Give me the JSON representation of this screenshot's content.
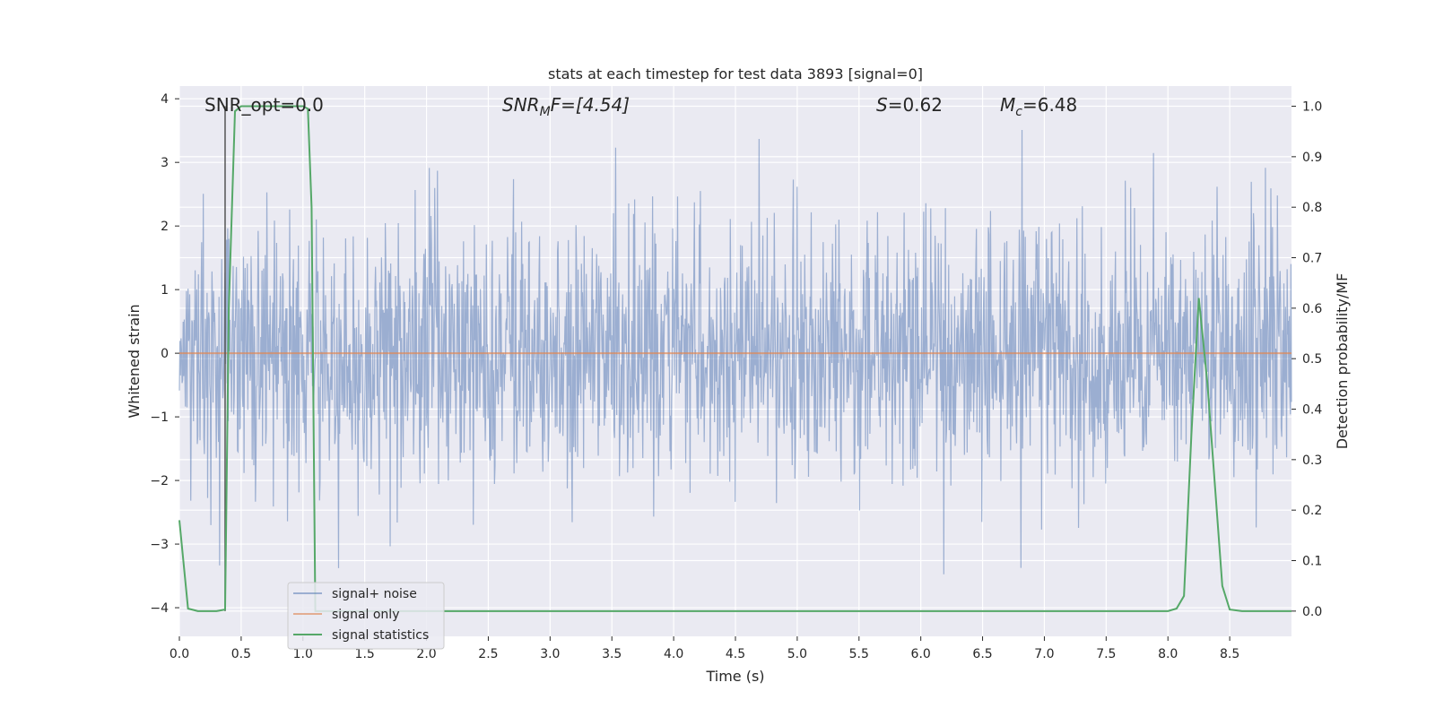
{
  "chart_data": {
    "type": "line",
    "title": "stats at each timestep for test data 3893 [signal=0]",
    "xlabel": "Time (s)",
    "ylabel": "Whitened strain",
    "ylabel_right": "Detection probability/MF",
    "xlim": [
      0.0,
      9.0
    ],
    "ylim": [
      -4.45,
      4.2
    ],
    "ylim_right": [
      -0.05,
      1.04
    ],
    "xticks": [
      "0.0",
      "0.5",
      "1.0",
      "1.5",
      "2.0",
      "2.5",
      "3.0",
      "3.5",
      "4.0",
      "4.5",
      "5.0",
      "5.5",
      "6.0",
      "6.5",
      "7.0",
      "7.5",
      "8.0",
      "8.5"
    ],
    "xtick_values": [
      0.0,
      0.5,
      1.0,
      1.5,
      2.0,
      2.5,
      3.0,
      3.5,
      4.0,
      4.5,
      5.0,
      5.5,
      6.0,
      6.5,
      7.0,
      7.5,
      8.0,
      8.5
    ],
    "yticks_left": [
      "−4",
      "−3",
      "−2",
      "−1",
      "0",
      "1",
      "2",
      "3",
      "4"
    ],
    "ytick_values_left": [
      -4,
      -3,
      -2,
      -1,
      0,
      1,
      2,
      3,
      4
    ],
    "yticks_right": [
      "0.0",
      "0.1",
      "0.2",
      "0.3",
      "0.4",
      "0.5",
      "0.6",
      "0.7",
      "0.8",
      "0.9",
      "1.0"
    ],
    "ytick_values_right": [
      0.0,
      0.1,
      0.2,
      0.3,
      0.4,
      0.5,
      0.6,
      0.7,
      0.8,
      0.9,
      1.0
    ],
    "grid": true,
    "annotations": {
      "snr_opt": "SNR_opt=0.0",
      "snr_mf_main": "SNR",
      "snr_mf_sub": "M",
      "snr_mf_rest": "F=[4.54]",
      "s_main": "S",
      "s_rest": "=0.62",
      "mc_main": "M",
      "mc_sub": "c",
      "mc_rest": "=6.48"
    },
    "marker_line_x": 0.37,
    "legend_position": "lower-left",
    "series": [
      {
        "name": "signal+ noise",
        "color": "#4c72b0",
        "description_only": "dense noise band",
        "noise_amplitude": 1.0,
        "sample_count": 2048
      },
      {
        "name": "signal only",
        "color": "#dd8452",
        "x": [
          0.0,
          9.0
        ],
        "y": [
          0.0,
          0.0
        ]
      },
      {
        "name": "signal statistics",
        "color": "#55a868",
        "axis": "right",
        "x": [
          0.0,
          0.07,
          0.15,
          0.3,
          0.37,
          0.4,
          0.45,
          0.5,
          0.6,
          0.8,
          1.0,
          1.04,
          1.07,
          1.1,
          1.15,
          1.3,
          2.0,
          3.0,
          4.0,
          5.0,
          6.0,
          7.0,
          7.5,
          8.0,
          8.07,
          8.13,
          8.19,
          8.25,
          8.32,
          8.38,
          8.44,
          8.5,
          8.6,
          9.0
        ],
        "y": [
          0.18,
          0.005,
          0.0,
          0.0,
          0.003,
          0.6,
          0.99,
          1.0,
          1.0,
          1.0,
          1.0,
          0.995,
          0.8,
          0.0,
          0.0,
          0.0,
          0.0,
          0.0,
          0.0,
          0.0,
          0.0,
          0.0,
          0.0,
          0.0,
          0.005,
          0.03,
          0.35,
          0.62,
          0.45,
          0.25,
          0.05,
          0.003,
          0.0,
          0.0
        ]
      }
    ]
  }
}
